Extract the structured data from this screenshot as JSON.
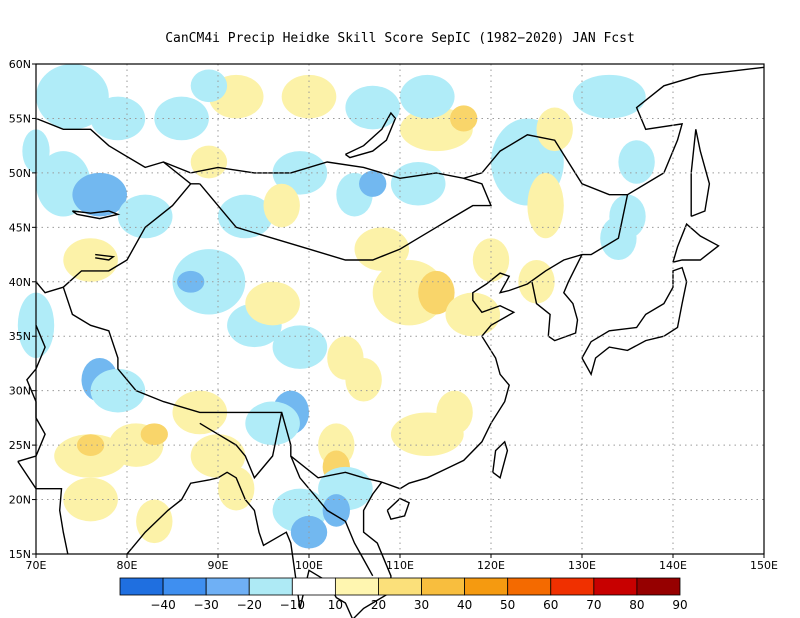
{
  "title": "CanCM4i Precip Heidke Skill Score SepIC (1982−2020) JAN Fcst",
  "lat_ticks": [
    "15N",
    "20N",
    "25N",
    "30N",
    "35N",
    "40N",
    "45N",
    "50N",
    "55N",
    "60N"
  ],
  "lon_ticks": [
    "70E",
    "80E",
    "90E",
    "100E",
    "110E",
    "120E",
    "130E",
    "140E",
    "150E"
  ],
  "colorbar": {
    "labels": [
      "−40",
      "−30",
      "−20",
      "−10",
      "10",
      "20",
      "30",
      "40",
      "50",
      "60",
      "70",
      "80",
      "90"
    ],
    "colors": [
      "#1f6fe0",
      "#3f8ff0",
      "#6fb0f5",
      "#aeeaf5",
      "#ffffff",
      "#fff6b0",
      "#fbe07a",
      "#f8be3e",
      "#f59a10",
      "#f46a00",
      "#f03000",
      "#c80000",
      "#960000"
    ]
  },
  "shading_colors": {
    "neg10": "#b0ecf8",
    "neg20": "#72b8f0",
    "pos10": "#fcf2a8",
    "pos20": "#f9d56a"
  }
}
